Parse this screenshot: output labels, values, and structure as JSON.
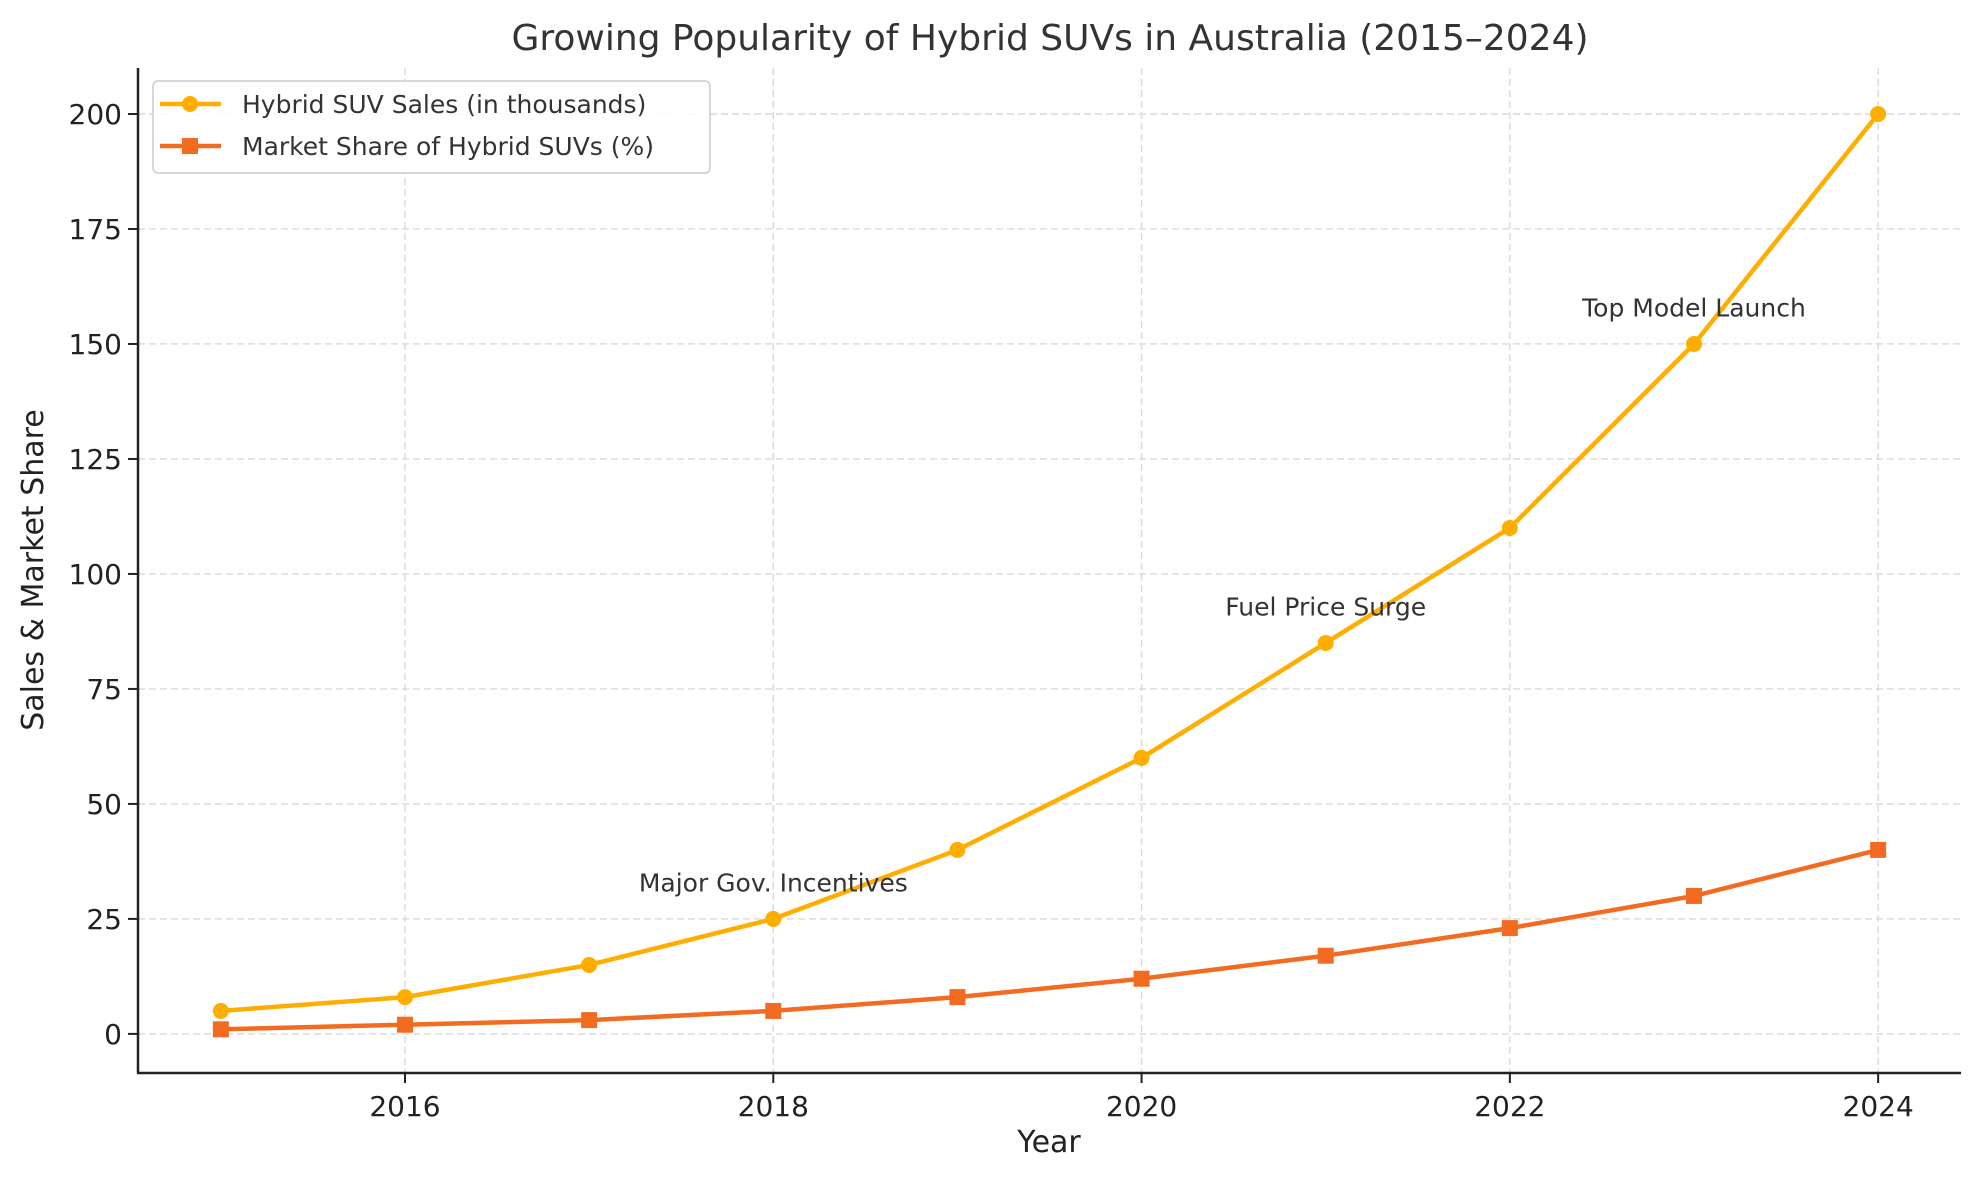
{
  "chart_data": {
    "type": "line",
    "title": "Growing Popularity of Hybrid SUVs in Australia (2015–2024)",
    "xlabel": "Year",
    "ylabel": "Sales & Market Share",
    "x": [
      2015,
      2016,
      2017,
      2018,
      2019,
      2020,
      2021,
      2022,
      2023,
      2024
    ],
    "xlim": [
      2014.55,
      2024.45
    ],
    "ylim": [
      -8.5,
      210
    ],
    "xticks": [
      2016,
      2018,
      2020,
      2022,
      2024
    ],
    "xtick_labels": [
      "2016",
      "2018",
      "2020",
      "2022",
      "2024"
    ],
    "yticks": [
      0,
      25,
      50,
      75,
      100,
      125,
      150,
      175,
      200
    ],
    "ytick_labels": [
      "0",
      "25",
      "50",
      "75",
      "100",
      "125",
      "150",
      "175",
      "200"
    ],
    "grid": true,
    "legend_position": "top-left",
    "series": [
      {
        "name": "Hybrid SUV Sales (in thousands)",
        "color": "#FFAE00",
        "marker": "circle",
        "values": [
          5,
          8,
          15,
          25,
          40,
          60,
          85,
          110,
          150,
          200
        ]
      },
      {
        "name": "Market Share of Hybrid SUVs (%)",
        "color": "#F26B21",
        "marker": "square",
        "values": [
          1,
          2,
          3,
          5,
          8,
          12,
          17,
          23,
          30,
          40
        ]
      }
    ],
    "annotations": [
      {
        "text": "Major Gov. Incentives",
        "x": 2018,
        "y": 31
      },
      {
        "text": "Fuel Price Surge",
        "x": 2021,
        "y": 91
      },
      {
        "text": "Top Model Launch",
        "x": 2023,
        "y": 156
      }
    ]
  }
}
